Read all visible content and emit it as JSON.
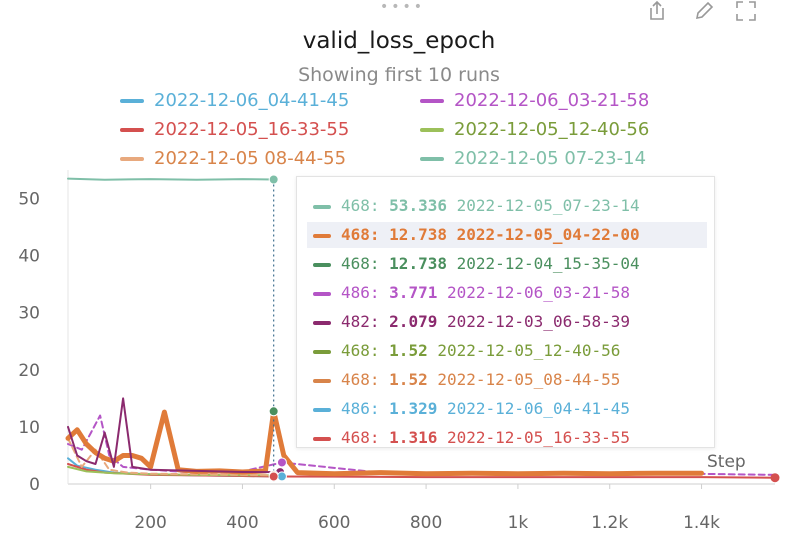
{
  "panel": {
    "title": "valid_loss_epoch",
    "subtitle": "Showing first 10 runs",
    "icons": [
      "drag-handle-icon",
      "share-icon",
      "edit-icon",
      "fullscreen-icon"
    ]
  },
  "chart_data": {
    "type": "line",
    "title": "valid_loss_epoch",
    "subtitle": "Showing first 10 runs",
    "xlabel": "Step",
    "ylabel": "",
    "xlim": [
      20,
      1560
    ],
    "ylim": [
      0,
      55
    ],
    "x_ticks": [
      200,
      400,
      600,
      800,
      1000,
      1200,
      1400
    ],
    "x_tick_labels": [
      "200",
      "400",
      "600",
      "800",
      "1k",
      "1.2k",
      "1.4k"
    ],
    "y_ticks": [
      0,
      10,
      20,
      30,
      40,
      50
    ],
    "y_tick_labels": [
      "0",
      "10",
      "20",
      "30",
      "40",
      "50"
    ],
    "grid": false,
    "legend_position": "top",
    "hover_step": 468,
    "series": [
      {
        "name": "2022-12-06_04-41-45",
        "color": "#5ab0d8",
        "dashed": false,
        "width": 2,
        "x": [
          20,
          40,
          80,
          120,
          200,
          300,
          400,
          486
        ],
        "y": [
          4.5,
          3.2,
          2.5,
          2.0,
          1.7,
          1.5,
          1.4,
          1.329
        ]
      },
      {
        "name": "2022-12-06_03-21-58",
        "color": "#b455c6",
        "dashed": true,
        "width": 2,
        "x": [
          20,
          50,
          70,
          90,
          110,
          140,
          200,
          300,
          400,
          486,
          700,
          1000,
          1300,
          1560
        ],
        "y": [
          7,
          6,
          9,
          12,
          5,
          3,
          2.5,
          2.0,
          2.2,
          3.771,
          2.0,
          1.9,
          1.9,
          1.6
        ]
      },
      {
        "name": "2022-12-05_16-33-55",
        "color": "#d4504f",
        "dashed": false,
        "width": 2,
        "x": [
          20,
          60,
          100,
          150,
          200,
          300,
          400,
          468,
          600,
          800,
          1000,
          1200,
          1400,
          1560
        ],
        "y": [
          3.5,
          2.5,
          2.0,
          1.8,
          1.6,
          1.5,
          1.4,
          1.316,
          1.3,
          1.2,
          1.2,
          1.2,
          1.2,
          1.1
        ]
      },
      {
        "name": "2022-12-05_12-40-56",
        "color": "#9cc05a",
        "dashed": false,
        "width": 2,
        "x": [
          20,
          60,
          120,
          200,
          300,
          400,
          468
        ],
        "y": [
          3.0,
          2.2,
          1.9,
          1.7,
          1.6,
          1.55,
          1.52
        ]
      },
      {
        "name": "2022-12-05_08-44-55",
        "color": "#e8a97e",
        "dashed": true,
        "width": 2,
        "x": [
          20,
          50,
          80,
          110,
          150,
          200,
          300,
          400,
          468
        ],
        "y": [
          8,
          3,
          6,
          2.5,
          2,
          1.8,
          1.7,
          1.6,
          1.52
        ]
      },
      {
        "name": "2022-12-05_07-23-14",
        "color": "#7fbfa8",
        "dashed": false,
        "width": 2,
        "x": [
          20,
          100,
          200,
          300,
          400,
          468
        ],
        "y": [
          53.5,
          53.3,
          53.4,
          53.3,
          53.4,
          53.336
        ]
      },
      {
        "name": "2022-12-05_04-22-00",
        "color": "#e07b39",
        "dashed": false,
        "width": 5,
        "x": [
          20,
          40,
          60,
          80,
          100,
          120,
          140,
          160,
          180,
          200,
          230,
          260,
          300,
          350,
          400,
          450,
          468,
          490,
          520,
          600,
          700,
          800,
          900,
          1000,
          1100,
          1200,
          1300,
          1400
        ],
        "y": [
          8,
          9.5,
          7,
          5.5,
          4.5,
          4,
          5,
          5,
          4.5,
          3,
          12.6,
          2.5,
          2.2,
          2.3,
          2.1,
          2.3,
          12.738,
          5,
          2,
          1.8,
          2.0,
          1.8,
          1.9,
          1.8,
          1.9,
          1.8,
          1.9,
          1.9
        ]
      },
      {
        "name": "2022-12-04_15-35-04",
        "color": "#4a8f5e",
        "dashed": false,
        "width": 2,
        "x": [
          468
        ],
        "y": [
          12.738
        ]
      },
      {
        "name": "2022-12-03_06-58-39",
        "color": "#8b2a6e",
        "dashed": false,
        "width": 2,
        "x": [
          20,
          40,
          60,
          80,
          100,
          120,
          140,
          160,
          200,
          300,
          400,
          482
        ],
        "y": [
          10,
          5,
          4,
          3.5,
          9,
          3,
          15,
          3,
          2.5,
          2.3,
          2.1,
          2.079
        ]
      }
    ],
    "tooltip_rows": [
      {
        "step": "468:",
        "value": "53.336",
        "run": "2022-12-05_07-23-14",
        "color": "#7fbfa8",
        "highlight": false
      },
      {
        "step": "468:",
        "value": "12.738",
        "run": "2022-12-05_04-22-00",
        "color": "#e07b39",
        "highlight": true
      },
      {
        "step": "468:",
        "value": "12.738",
        "run": "2022-12-04_15-35-04",
        "color": "#4a8f5e",
        "highlight": false
      },
      {
        "step": "486:",
        "value": "3.771",
        "run": "2022-12-06_03-21-58",
        "color": "#b455c6",
        "highlight": false
      },
      {
        "step": "482:",
        "value": "2.079",
        "run": "2022-12-03_06-58-39",
        "color": "#8b2a6e",
        "highlight": false
      },
      {
        "step": "468:",
        "value": "1.52",
        "run": "2022-12-05_12-40-56",
        "color": "#7a9c3a",
        "highlight": false
      },
      {
        "step": "468:",
        "value": "1.52",
        "run": "2022-12-05_08-44-55",
        "color": "#d8844a",
        "highlight": false
      },
      {
        "step": "486:",
        "value": "1.329",
        "run": "2022-12-06_04-41-45",
        "color": "#5ab0d8",
        "highlight": false
      },
      {
        "step": "468:",
        "value": "1.316",
        "run": "2022-12-05_16-33-55",
        "color": "#d4504f",
        "highlight": false
      }
    ]
  },
  "legend": [
    {
      "label": "2022-12-06_04-41-45",
      "color": "#5ab0d8",
      "text_color": "#5ab0d8"
    },
    {
      "label": "2022-12-06_03-21-58",
      "color": "#b455c6",
      "text_color": "#b455c6"
    },
    {
      "label": "2022-12-05_16-33-55",
      "color": "#d4504f",
      "text_color": "#d4504f"
    },
    {
      "label": "2022-12-05_12-40-56",
      "color": "#9cc05a",
      "text_color": "#7a9c3a"
    },
    {
      "label": "2022-12-05 08-44-55",
      "color": "#e8a97e",
      "text_color": "#d8844a"
    },
    {
      "label": "2022-12-05 07-23-14",
      "color": "#7fbfa8",
      "text_color": "#7fbfa8"
    }
  ]
}
